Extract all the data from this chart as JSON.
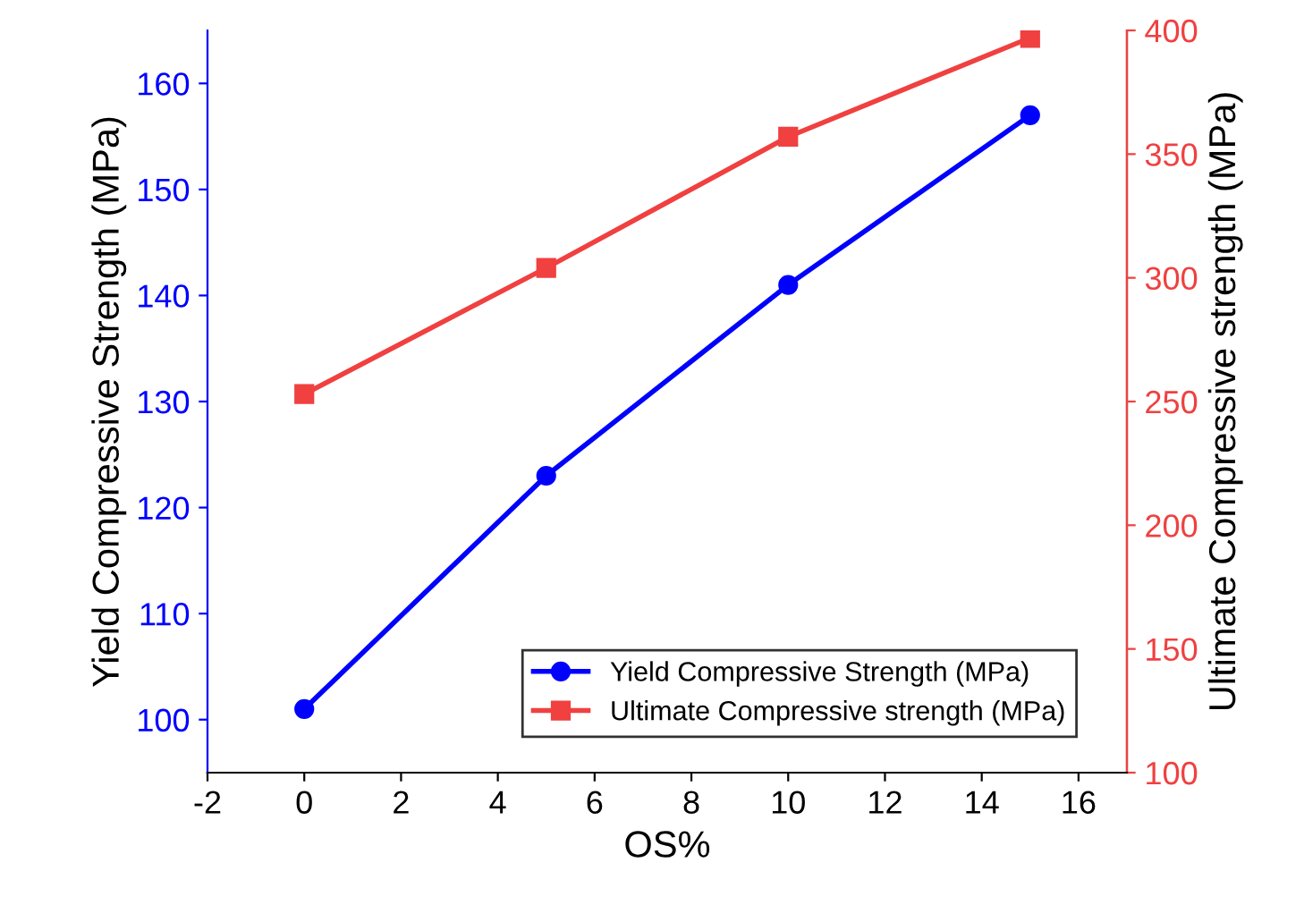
{
  "chart_data": {
    "type": "line",
    "xlabel": "OS%",
    "ylabel": "Yield Compressive Strength (MPa)",
    "y2label": "Ultimate Compressive strength (MPa)",
    "x": [
      0,
      5,
      10,
      15
    ],
    "series": [
      {
        "name": "Yield Compressive Strength (MPa)",
        "color": "#0000ff",
        "values": [
          101,
          123,
          141,
          157
        ],
        "marker": "circle"
      },
      {
        "name": "Ultimate Compressive strength (MPa)",
        "color": "#f04040",
        "values": [
          253,
          304,
          357,
          397
        ],
        "axis": "y2",
        "marker": "square"
      }
    ],
    "xlim": [
      -2,
      17
    ],
    "xticks": [
      -2,
      0,
      2,
      4,
      6,
      8,
      10,
      12,
      14,
      16
    ],
    "ylim": [
      95,
      165
    ],
    "yticks": [
      100,
      110,
      120,
      130,
      140,
      150,
      160
    ],
    "y2lim": [
      100,
      400
    ],
    "y2ticks": [
      100,
      150,
      200,
      250,
      300,
      350,
      400
    ],
    "grid": false,
    "legend": "bottom right",
    "line_style": "solid"
  }
}
